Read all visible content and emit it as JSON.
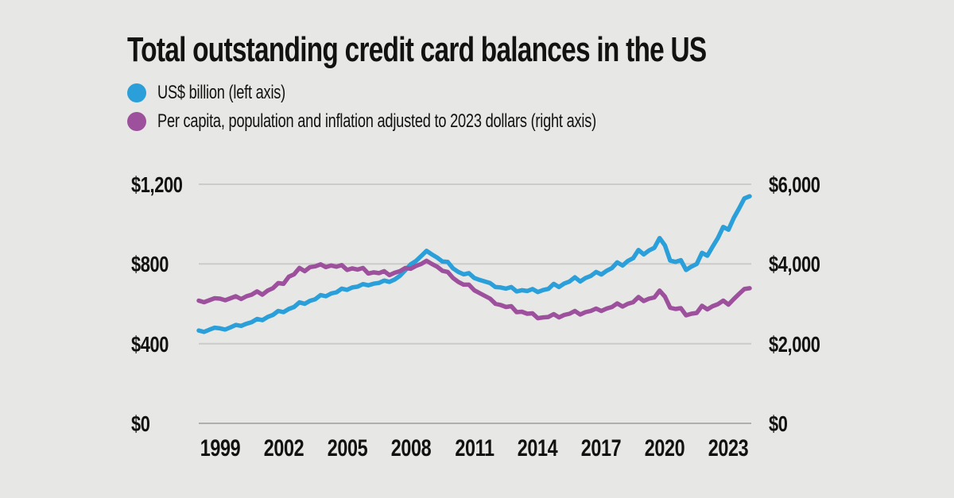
{
  "page": {
    "background": "#e7e8e6",
    "text_color": "#121211"
  },
  "title": "Total outstanding credit card balances in the US",
  "legend": [
    {
      "label": "US$ billion (left axis)",
      "color": "#2b9fd9"
    },
    {
      "label": "Per capita, population and inflation adjusted to 2023 dollars (right axis)",
      "color": "#9d519d"
    }
  ],
  "axes": {
    "left": {
      "ticks": [
        {
          "label": "$1,200",
          "value": 1200
        },
        {
          "label": "$800",
          "value": 800
        },
        {
          "label": "$400",
          "value": 400
        },
        {
          "label": "$0",
          "value": 0
        }
      ]
    },
    "right": {
      "ticks": [
        {
          "label": "$6,000",
          "value": 6000
        },
        {
          "label": "$4,000",
          "value": 4000
        },
        {
          "label": "$2,000",
          "value": 2000
        },
        {
          "label": "$0",
          "value": 0
        }
      ]
    },
    "x": {
      "ticks": [
        {
          "label": "1999",
          "year": 1999
        },
        {
          "label": "2002",
          "year": 2002
        },
        {
          "label": "2005",
          "year": 2005
        },
        {
          "label": "2008",
          "year": 2008
        },
        {
          "label": "2011",
          "year": 2011
        },
        {
          "label": "2014",
          "year": 2014
        },
        {
          "label": "2017",
          "year": 2017
        },
        {
          "label": "2020",
          "year": 2020
        },
        {
          "label": "2023",
          "year": 2023
        }
      ]
    }
  },
  "chart_data": {
    "type": "line",
    "title": "Total outstanding credit card balances in the US",
    "x_start": 1998.0,
    "x_step": 0.25,
    "x_note": "quarterly",
    "left_ylim": [
      0,
      1200
    ],
    "right_ylim": [
      0,
      6000
    ],
    "grid": true,
    "legend_position": "top-left",
    "series": [
      {
        "name": "US$ billion (left axis)",
        "axis": "left",
        "color": "#2b9fd9",
        "values": [
          466,
          459,
          470,
          480,
          477,
          471,
          482,
          494,
          489,
          500,
          508,
          524,
          518,
          534,
          544,
          564,
          558,
          574,
          584,
          607,
          600,
          615,
          623,
          644,
          638,
          652,
          658,
          676,
          670,
          682,
          686,
          699,
          693,
          701,
          705,
          717,
          710,
          722,
          741,
          769,
          798,
          815,
          840,
          866,
          848,
          832,
          812,
          810,
          778,
          760,
          748,
          754,
          730,
          720,
          712,
          704,
          684,
          682,
          676,
          684,
          662,
          668,
          664,
          674,
          659,
          669,
          675,
          700,
          684,
          702,
          712,
          733,
          712,
          729,
          740,
          760,
          747,
          766,
          780,
          808,
          792,
          815,
          829,
          870,
          848,
          868,
          881,
          930,
          893,
          817,
          810,
          819,
          770,
          787,
          800,
          856,
          841,
          887,
          930,
          986,
          972,
          1031,
          1079,
          1129,
          1140
        ]
      },
      {
        "name": "Per capita, population and inflation adjusted to 2023 dollars (right axis)",
        "axis": "right",
        "color": "#9d519d",
        "values": [
          3080,
          3040,
          3090,
          3140,
          3130,
          3090,
          3140,
          3190,
          3120,
          3190,
          3230,
          3310,
          3230,
          3330,
          3390,
          3520,
          3500,
          3680,
          3740,
          3900,
          3820,
          3920,
          3940,
          3990,
          3920,
          3960,
          3930,
          3970,
          3850,
          3890,
          3860,
          3900,
          3760,
          3790,
          3770,
          3820,
          3720,
          3780,
          3820,
          3900,
          3880,
          3950,
          4000,
          4080,
          4000,
          3930,
          3830,
          3800,
          3650,
          3550,
          3480,
          3480,
          3340,
          3270,
          3200,
          3130,
          3000,
          2970,
          2920,
          2940,
          2790,
          2800,
          2750,
          2760,
          2640,
          2660,
          2670,
          2740,
          2660,
          2720,
          2750,
          2820,
          2730,
          2790,
          2820,
          2880,
          2820,
          2880,
          2920,
          3010,
          2930,
          3000,
          3040,
          3170,
          3070,
          3130,
          3160,
          3330,
          3180,
          2900,
          2870,
          2890,
          2710,
          2750,
          2770,
          2950,
          2860,
          2940,
          2990,
          3080,
          2980,
          3120,
          3250,
          3370,
          3390
        ]
      }
    ]
  }
}
